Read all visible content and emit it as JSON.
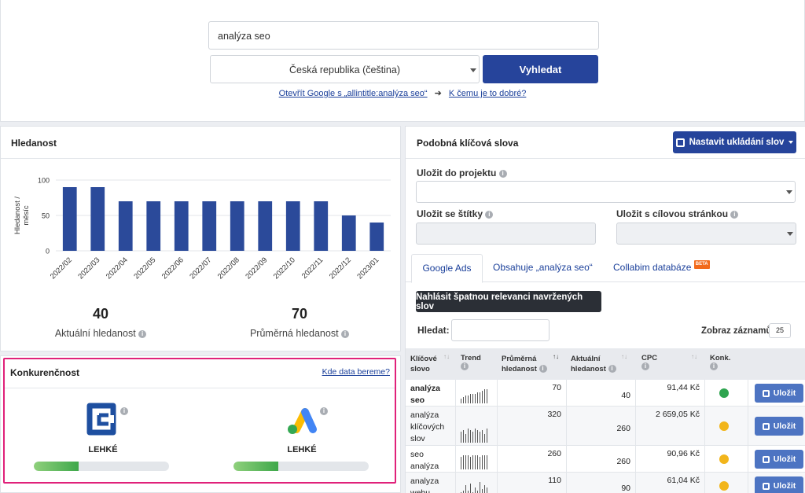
{
  "search": {
    "query": "analýza seo",
    "country_selected": "Česká republika (čeština)",
    "submit_label": "Vyhledat",
    "link_allintitle": "Otevřít Google s „allintitle:analýza seo“",
    "link_arrow": "➔",
    "link_why": "K čemu je to dobré?"
  },
  "volume": {
    "title": "Hledanost",
    "ylabel": "Hledanost / měsíc",
    "current_value": "40",
    "current_label": "Aktuální hledanost",
    "avg_value": "70",
    "avg_label": "Průměrná hledanost"
  },
  "chart_data": {
    "type": "bar",
    "categories": [
      "2022/02",
      "2022/03",
      "2022/04",
      "2022/05",
      "2022/06",
      "2022/07",
      "2022/08",
      "2022/09",
      "2022/10",
      "2022/11",
      "2022/12",
      "2023/01"
    ],
    "values": [
      90,
      90,
      70,
      70,
      70,
      70,
      70,
      70,
      70,
      70,
      50,
      40
    ],
    "ylabel": "Hledanost / měsíc",
    "yticks": [
      0,
      50,
      100
    ],
    "ylim": [
      0,
      100
    ],
    "grid": true,
    "color": "#2b4a9a"
  },
  "competition": {
    "title": "Konkurenčnost",
    "link": "Kde data bereme?",
    "collabim_level": "LEHKÉ",
    "collabim_fill": 0.33,
    "google_level": "LEHKÉ",
    "google_fill": 0.33,
    "highlight_color": "#e0217a"
  },
  "similar": {
    "title": "Podobná klíčová slova",
    "save_button": "Nastavit ukládání slov",
    "project_label": "Uložit do projektu",
    "tags_label": "Uložit se štítky",
    "target_label": "Uložit s cílovou stránkou",
    "tabs": [
      {
        "label": "Google Ads",
        "active": true
      },
      {
        "label": "Obsahuje „analýza seo“",
        "active": false
      },
      {
        "label": "Collabim databáze",
        "active": false,
        "badge": "BETA"
      }
    ],
    "report_button": "Nahlásit špatnou relevanci navržených slov",
    "search_label": "Hledat:",
    "page_size_label": "Zobraz záznamů",
    "page_size": "25",
    "columns": [
      "Klíčové slovo",
      "Trend",
      "Průměrná hledanost",
      "Aktuální hledanost",
      "CPC",
      "Konk."
    ],
    "rows": [
      {
        "keyword": "analýza seo",
        "avg": "70",
        "current": "40",
        "cpc": "91,44 Kč",
        "comp_color": "#2ea44f",
        "trend": [
          3,
          4,
          5,
          5,
          6,
          6,
          6,
          7,
          7,
          8,
          9,
          9
        ],
        "save": "Uložit"
      },
      {
        "keyword": "analýza klíčových slov",
        "avg": "320",
        "current": "260",
        "cpc": "2 659,05 Kč",
        "comp_color": "#f2b51b",
        "trend": [
          6,
          7,
          5,
          8,
          7,
          6,
          8,
          7,
          6,
          7,
          5,
          8
        ],
        "save": "Uložit"
      },
      {
        "keyword": "seo analýza",
        "avg": "260",
        "current": "260",
        "cpc": "90,96 Kč",
        "comp_color": "#f2b51b",
        "trend": [
          7,
          8,
          8,
          8,
          7,
          8,
          8,
          8,
          7,
          8,
          8,
          8
        ],
        "save": "Uložit"
      },
      {
        "keyword": "analyza webu",
        "avg": "110",
        "current": "90",
        "cpc": "61,04 Kč",
        "comp_color": "#f2b51b",
        "trend": [
          2,
          3,
          6,
          3,
          7,
          2,
          5,
          3,
          8,
          4,
          6,
          5
        ],
        "save": "Uložit"
      }
    ]
  }
}
